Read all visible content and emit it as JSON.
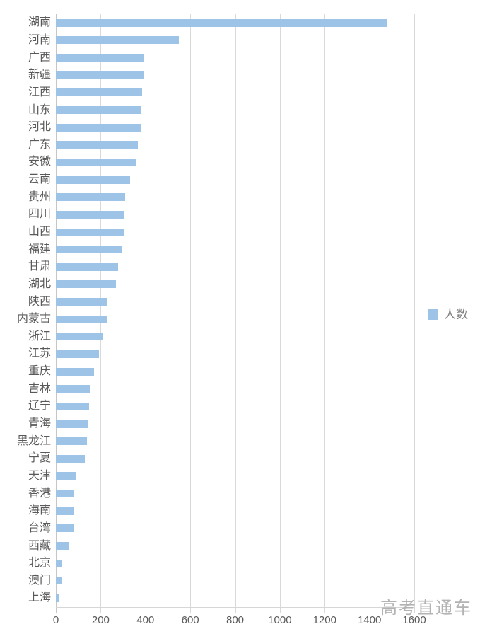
{
  "chart_data": {
    "type": "bar",
    "orientation": "horizontal",
    "categories": [
      "湖南",
      "河南",
      "广西",
      "新疆",
      "江西",
      "山东",
      "河北",
      "广东",
      "安徽",
      "云南",
      "贵州",
      "四川",
      "山西",
      "福建",
      "甘肃",
      "湖北",
      "陕西",
      "内蒙古",
      "浙江",
      "江苏",
      "重庆",
      "吉林",
      "辽宁",
      "青海",
      "黑龙江",
      "宁夏",
      "天津",
      "香港",
      "海南",
      "台湾",
      "西藏",
      "北京",
      "澳门",
      "上海"
    ],
    "values": [
      1480,
      548,
      392,
      392,
      386,
      382,
      378,
      366,
      357,
      332,
      310,
      302,
      302,
      295,
      278,
      268,
      231,
      228,
      211,
      193,
      170,
      152,
      149,
      146,
      139,
      130,
      92,
      83,
      82,
      82,
      57,
      26,
      25,
      14
    ],
    "xlim": [
      0,
      1600
    ],
    "x_tick_labels": [
      "0",
      "200",
      "400",
      "600",
      "800",
      "1000",
      "1200",
      "1400",
      "1600"
    ],
    "grid": true,
    "legend_label": "人数",
    "legend_position": "right",
    "bar_color": "#9dc3e6"
  },
  "watermark": "高考直通车",
  "colors": {
    "bar": "#9dc3e6",
    "gridline": "#d9d9d9",
    "axis_text": "#595959",
    "legend_text": "#7f7f7f",
    "watermark": "#b3b3b3"
  }
}
